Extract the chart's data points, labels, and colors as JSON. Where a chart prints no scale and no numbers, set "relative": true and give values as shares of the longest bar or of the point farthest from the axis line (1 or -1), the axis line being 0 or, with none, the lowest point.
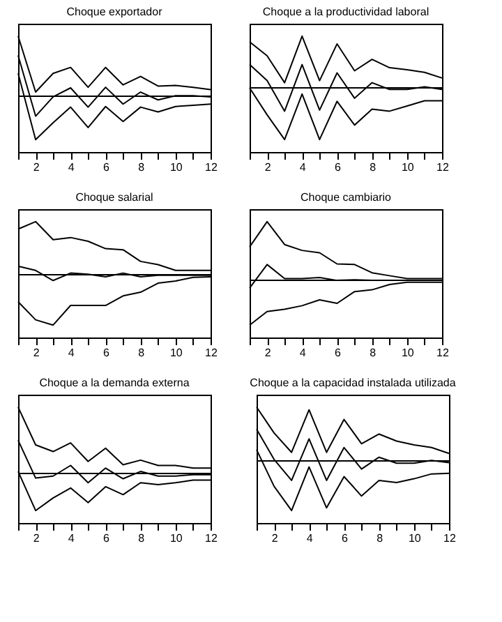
{
  "chart_data": [
    {
      "type": "line",
      "title": "Choque exportador",
      "relative": true,
      "x": [
        1,
        2,
        3,
        4,
        5,
        6,
        7,
        8,
        9,
        10,
        11,
        12
      ],
      "xlim": [
        1,
        12
      ],
      "xticks": [
        {
          "value": 1,
          "label": null
        },
        2,
        {
          "value": 3,
          "label": null
        },
        4,
        {
          "value": 5,
          "label": null
        },
        6,
        {
          "value": 7,
          "label": null
        },
        8,
        {
          "value": 9,
          "label": null
        },
        10,
        {
          "value": 11,
          "label": null
        },
        12
      ],
      "grid": false,
      "marker": "none",
      "series": [
        {
          "color": "#000000",
          "values": [
            1,
            0.07,
            0.38,
            0.48,
            0.15,
            0.48,
            0.19,
            0.33,
            0.17,
            0.18,
            0.15,
            0.11
          ]
        },
        {
          "color": "#000000",
          "values": [
            0.68,
            -0.33,
            -0.01,
            0.14,
            -0.18,
            0.15,
            -0.13,
            0.07,
            -0.06,
            0.01,
            0.01,
            -0.01
          ]
        },
        {
          "color": "#000000",
          "values": [
            0.38,
            -0.72,
            -0.44,
            -0.18,
            -0.52,
            -0.17,
            -0.42,
            -0.18,
            -0.26,
            -0.17,
            -0.15,
            -0.13
          ]
        }
      ],
      "ref_lines": [
        {
          "axis": "y",
          "value": 0,
          "color": "#000000"
        }
      ]
    },
    {
      "type": "line",
      "title": "Choque a la productividad laboral",
      "relative": true,
      "x": [
        1,
        2,
        3,
        4,
        5,
        6,
        7,
        8,
        9,
        10,
        11,
        12
      ],
      "xlim": [
        1,
        12
      ],
      "xticks": [
        {
          "value": 1,
          "label": null
        },
        2,
        {
          "value": 3,
          "label": null
        },
        4,
        {
          "value": 5,
          "label": null
        },
        6,
        {
          "value": 7,
          "label": null
        },
        8,
        {
          "value": 9,
          "label": null
        },
        10,
        {
          "value": 11,
          "label": null
        },
        12
      ],
      "grid": false,
      "marker": "none",
      "series": [
        {
          "color": "#000000",
          "values": [
            0.89,
            0.62,
            0.1,
            1,
            0.14,
            0.85,
            0.33,
            0.55,
            0.39,
            0.35,
            0.3,
            0.19
          ]
        },
        {
          "color": "#000000",
          "values": [
            0.45,
            0.14,
            -0.45,
            0.45,
            -0.43,
            0.29,
            -0.2,
            0.1,
            -0.03,
            -0.03,
            0.02,
            -0.03
          ]
        },
        {
          "color": "#000000",
          "values": [
            0,
            -0.52,
            -1,
            -0.12,
            -1,
            -0.26,
            -0.72,
            -0.41,
            -0.45,
            -0.35,
            -0.25,
            -0.25
          ]
        }
      ],
      "ref_lines": [
        {
          "axis": "y",
          "value": 0,
          "color": "#000000"
        }
      ]
    },
    {
      "type": "line",
      "title": "Choque salarial",
      "relative": true,
      "x": [
        1,
        2,
        3,
        4,
        5,
        6,
        7,
        8,
        9,
        10,
        11,
        12
      ],
      "xlim": [
        1,
        12
      ],
      "xticks": [
        {
          "value": 1,
          "label": null
        },
        2,
        {
          "value": 3,
          "label": null
        },
        4,
        {
          "value": 5,
          "label": null
        },
        6,
        {
          "value": 7,
          "label": null
        },
        8,
        {
          "value": 9,
          "label": null
        },
        10,
        {
          "value": 11,
          "label": null
        },
        12
      ],
      "grid": false,
      "marker": "none",
      "series": [
        {
          "color": "#000000",
          "values": [
            0.86,
            1,
            0.66,
            0.7,
            0.63,
            0.49,
            0.47,
            0.25,
            0.19,
            0.08,
            0.08,
            0.08
          ]
        },
        {
          "color": "#000000",
          "values": [
            0.16,
            0.08,
            -0.11,
            0.03,
            0.01,
            -0.04,
            0.03,
            -0.04,
            -0.01,
            -0.01,
            -0.01,
            -0.01
          ]
        },
        {
          "color": "#000000",
          "values": [
            -0.51,
            -0.85,
            -0.95,
            -0.58,
            -0.58,
            -0.58,
            -0.4,
            -0.33,
            -0.16,
            -0.12,
            -0.05,
            -0.04
          ]
        }
      ],
      "ref_lines": [
        {
          "axis": "y",
          "value": 0,
          "color": "#000000"
        }
      ]
    },
    {
      "type": "line",
      "title": "Choque cambiario",
      "relative": true,
      "x": [
        1,
        2,
        3,
        4,
        5,
        6,
        7,
        8,
        9,
        10,
        11,
        12
      ],
      "xlim": [
        1,
        12
      ],
      "xticks": [
        {
          "value": 1,
          "label": null
        },
        2,
        {
          "value": 3,
          "label": null
        },
        4,
        {
          "value": 5,
          "label": null
        },
        6,
        {
          "value": 7,
          "label": null
        },
        8,
        {
          "value": 9,
          "label": null
        },
        10,
        {
          "value": 11,
          "label": null
        },
        12
      ],
      "grid": false,
      "marker": "none",
      "series": [
        {
          "color": "#000000",
          "values": [
            0.57,
            1,
            0.61,
            0.51,
            0.47,
            0.28,
            0.27,
            0.13,
            0.08,
            0.03,
            0.03,
            0.03
          ]
        },
        {
          "color": "#000000",
          "values": [
            -0.13,
            0.27,
            0.03,
            0.03,
            0.05,
            0,
            0.01,
            0,
            0,
            0,
            0,
            0
          ]
        },
        {
          "color": "#000000",
          "values": [
            -0.76,
            -0.53,
            -0.49,
            -0.43,
            -0.33,
            -0.39,
            -0.19,
            -0.16,
            -0.07,
            -0.03,
            -0.03,
            -0.03
          ]
        }
      ],
      "ref_lines": [
        {
          "axis": "y",
          "value": 0,
          "color": "#000000"
        }
      ]
    },
    {
      "type": "line",
      "title": "Choque a la demanda externa",
      "relative": true,
      "x": [
        1,
        2,
        3,
        4,
        5,
        6,
        7,
        8,
        9,
        10,
        11,
        12
      ],
      "xlim": [
        1,
        12
      ],
      "xticks": [
        {
          "value": 1,
          "label": null
        },
        2,
        {
          "value": 3,
          "label": null
        },
        4,
        {
          "value": 5,
          "label": null
        },
        6,
        {
          "value": 7,
          "label": null
        },
        8,
        {
          "value": 9,
          "label": null
        },
        10,
        {
          "value": 11,
          "label": null
        },
        12
      ],
      "grid": false,
      "marker": "none",
      "series": [
        {
          "color": "#000000",
          "values": [
            1,
            0.43,
            0.33,
            0.46,
            0.18,
            0.38,
            0.13,
            0.2,
            0.12,
            0.12,
            0.08,
            0.08
          ]
        },
        {
          "color": "#000000",
          "values": [
            0.5,
            -0.07,
            -0.04,
            0.12,
            -0.14,
            0.08,
            -0.08,
            0.03,
            -0.04,
            -0.04,
            -0.02,
            -0.02
          ]
        },
        {
          "color": "#000000",
          "values": [
            0.03,
            -0.56,
            -0.37,
            -0.22,
            -0.44,
            -0.2,
            -0.32,
            -0.14,
            -0.17,
            -0.14,
            -0.1,
            -0.1
          ]
        }
      ],
      "ref_lines": [
        {
          "axis": "y",
          "value": 0,
          "color": "#000000"
        }
      ]
    },
    {
      "type": "line",
      "title": "Choque a la capacidad instalada utilizada",
      "relative": true,
      "x": [
        1,
        2,
        3,
        4,
        5,
        6,
        7,
        8,
        9,
        10,
        11,
        12
      ],
      "xlim": [
        1,
        12
      ],
      "xticks": [
        {
          "value": 1,
          "label": null
        },
        2,
        {
          "value": 3,
          "label": null
        },
        4,
        {
          "value": 5,
          "label": null
        },
        6,
        {
          "value": 7,
          "label": null
        },
        8,
        {
          "value": 9,
          "label": null
        },
        10,
        {
          "value": 11,
          "label": null
        },
        12
      ],
      "grid": false,
      "marker": "none",
      "series": [
        {
          "color": "#000000",
          "values": [
            1,
            0.52,
            0.16,
            0.95,
            0.16,
            0.77,
            0.32,
            0.5,
            0.37,
            0.3,
            0.25,
            0.14
          ]
        },
        {
          "color": "#000000",
          "values": [
            0.59,
            0.03,
            -0.36,
            0.41,
            -0.36,
            0.25,
            -0.15,
            0.07,
            -0.04,
            -0.04,
            0.01,
            -0.03
          ]
        },
        {
          "color": "#000000",
          "values": [
            0.21,
            -0.47,
            -0.92,
            -0.11,
            -0.87,
            -0.29,
            -0.65,
            -0.36,
            -0.4,
            -0.33,
            -0.24,
            -0.23
          ]
        }
      ],
      "ref_lines": [
        {
          "axis": "y",
          "value": 0,
          "color": "#000000"
        }
      ]
    }
  ]
}
